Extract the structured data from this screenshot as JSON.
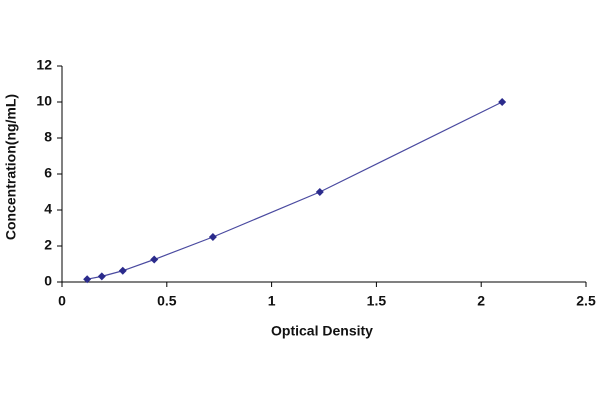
{
  "chart_data": {
    "type": "scatter",
    "x_label": "Optical Density",
    "y_label": "Concentration(ng/mL)",
    "x": [
      0.12,
      0.19,
      0.29,
      0.44,
      0.72,
      1.23,
      2.1
    ],
    "values": [
      0.156,
      0.312,
      0.625,
      1.25,
      2.5,
      5,
      10
    ],
    "color": "#2b2b8c",
    "line_color": "#4a4aa0",
    "xlim": [
      0,
      2.5
    ],
    "xticks": [
      0,
      0.5,
      1,
      1.5,
      2,
      2.5
    ],
    "ylim": [
      0,
      12
    ],
    "yticks": [
      0,
      2,
      4,
      6,
      8,
      10,
      12
    ],
    "grid": false
  }
}
